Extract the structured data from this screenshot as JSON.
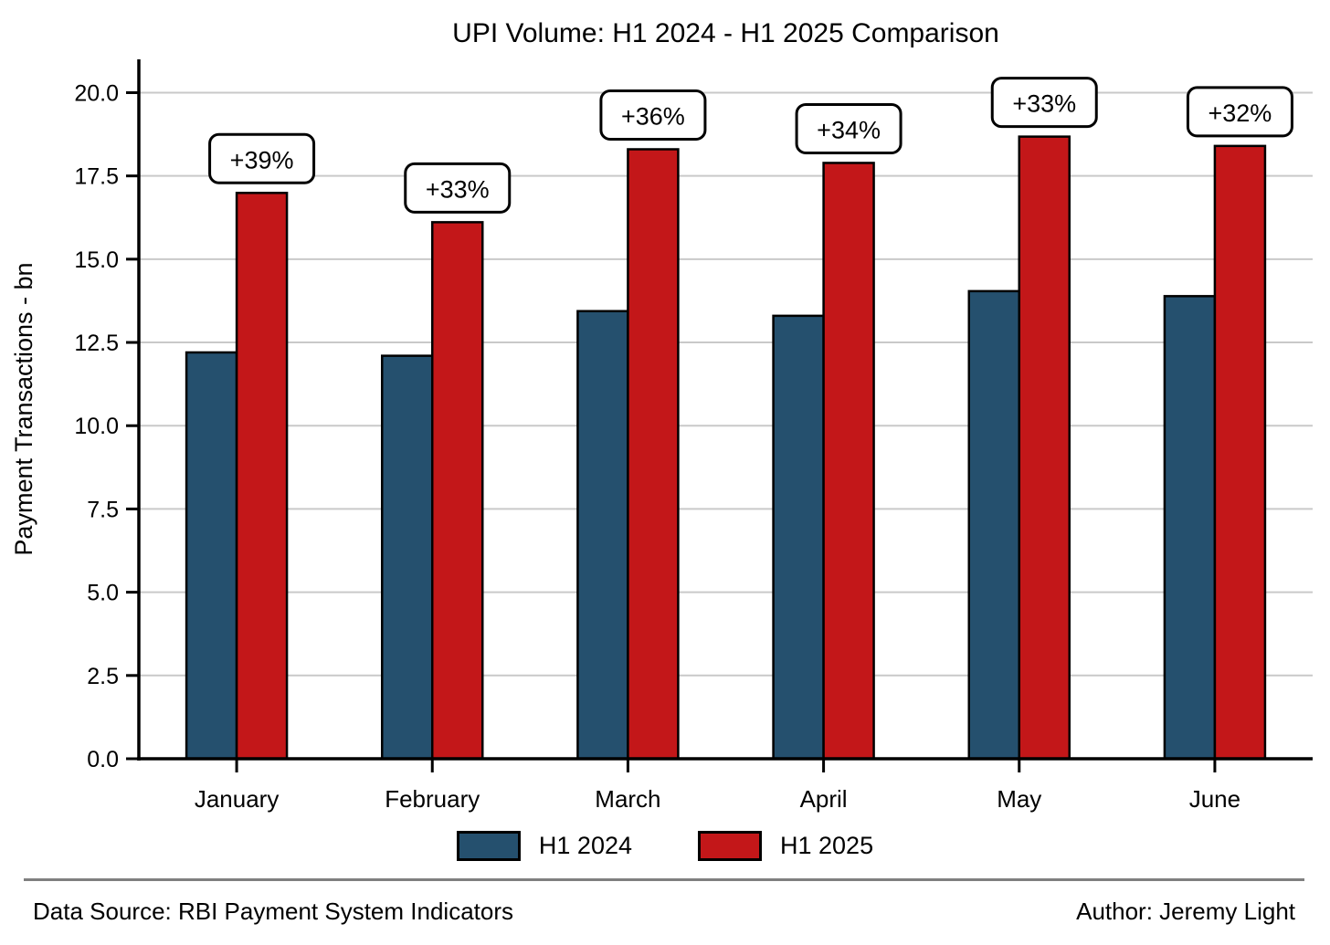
{
  "title": "UPI Volume: H1 2024 - H1 2025 Comparison",
  "colors": {
    "h1_2024": "#25506E",
    "h1_2025": "#C31719",
    "grid": "#C9C9C9",
    "axis": "#000000",
    "annotation_border": "#000000",
    "annotation_fill": "#FFFFFF",
    "divider": "#7F7F7F",
    "background": "#FFFFFF"
  },
  "chart_data": {
    "type": "bar",
    "title": "UPI Volume: H1 2024 - H1 2025 Comparison",
    "categories": [
      "January",
      "February",
      "March",
      "April",
      "May",
      "June"
    ],
    "series": [
      {
        "name": "H1 2024",
        "color": "#25506E",
        "values": [
          12.2,
          12.1,
          13.44,
          13.3,
          14.04,
          13.89
        ]
      },
      {
        "name": "H1 2025",
        "color": "#C31719",
        "values": [
          16.99,
          16.11,
          18.3,
          17.89,
          18.68,
          18.4
        ]
      }
    ],
    "annotations": [
      "+39%",
      "+33%",
      "+36%",
      "+34%",
      "+33%",
      "+32%"
    ],
    "xlabel": "",
    "ylabel": "Payment Transactions - bn",
    "yticks": [
      0.0,
      2.5,
      5.0,
      7.5,
      10.0,
      12.5,
      15.0,
      17.5,
      20.0
    ],
    "ylim": [
      0,
      21
    ],
    "grid": "horizontal",
    "legend_position": "bottom"
  },
  "footer": {
    "source": "Data Source: RBI Payment System Indicators",
    "author": "Author: Jeremy Light"
  }
}
